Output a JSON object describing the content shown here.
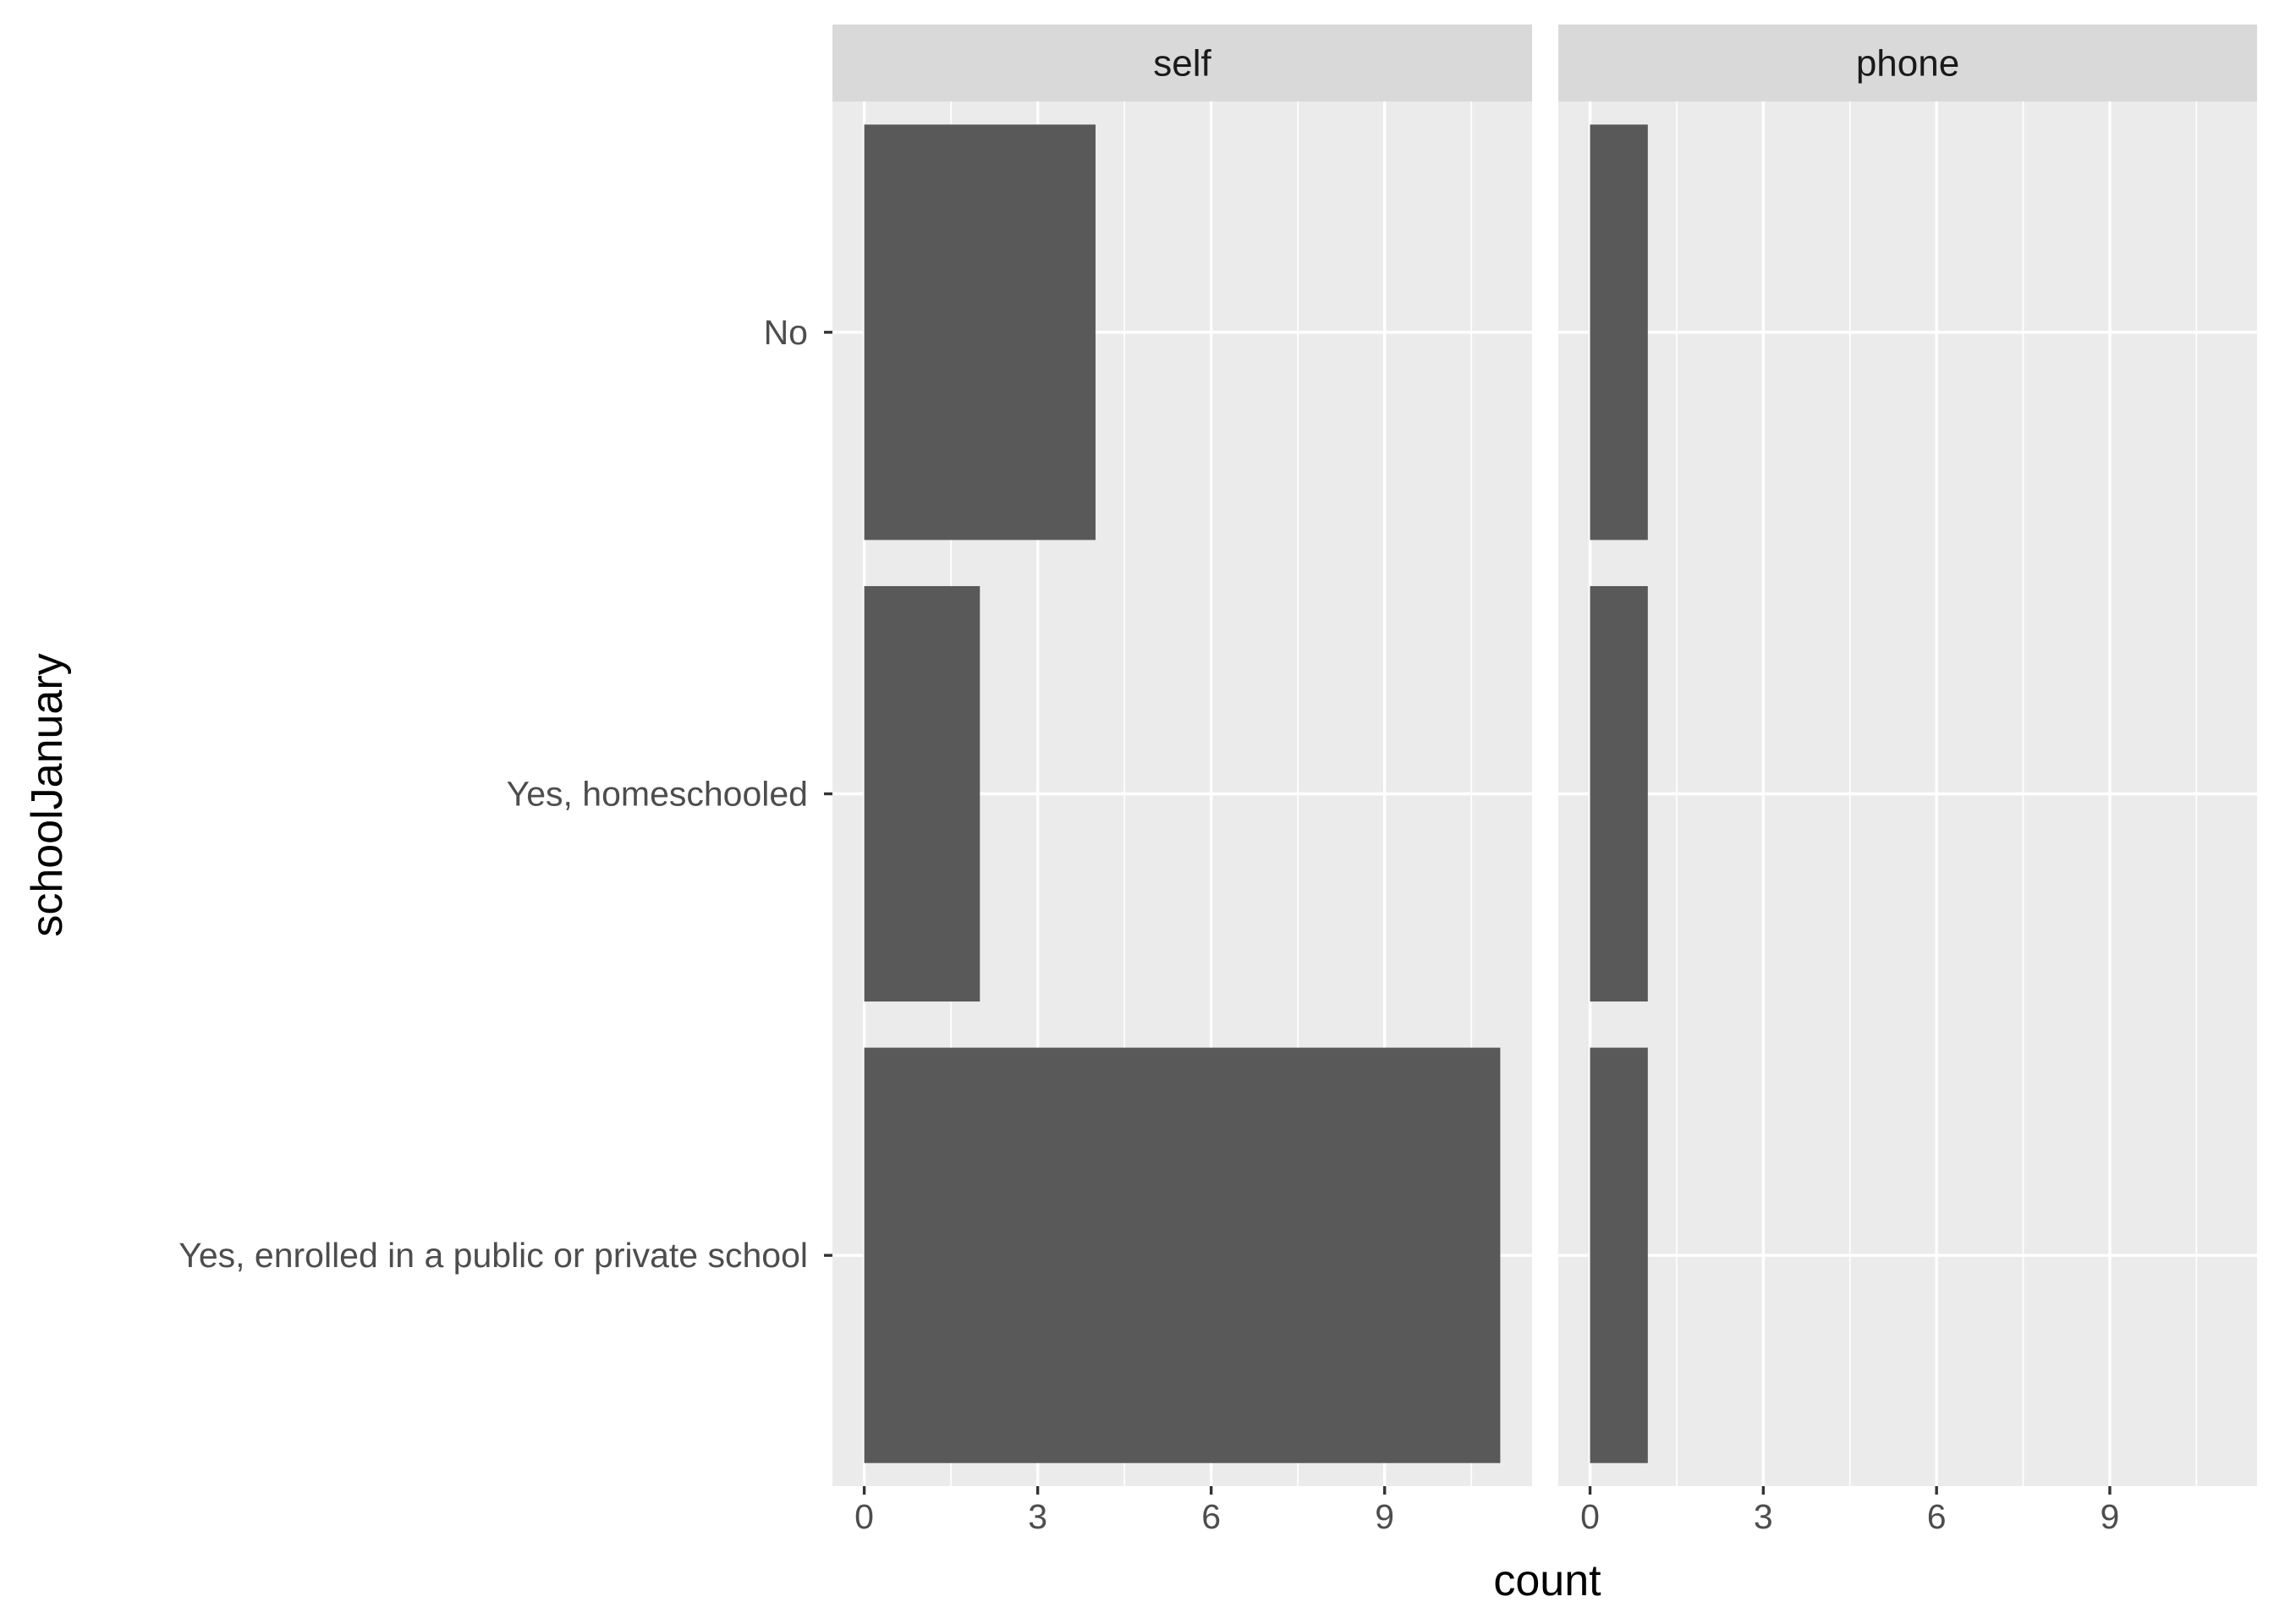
{
  "chart_data": {
    "type": "bar",
    "orientation": "horizontal",
    "categories": [
      "No",
      "Yes, homeschooled",
      "Yes, enrolled in a public or private school"
    ],
    "facets": [
      {
        "name": "self",
        "values": [
          4,
          2,
          11
        ]
      },
      {
        "name": "phone",
        "values": [
          1,
          1,
          1
        ]
      }
    ],
    "xlabel": "count",
    "ylabel": "schoolJanuary",
    "xlim": [
      -0.55,
      11.55
    ],
    "xticks": [
      0,
      3,
      6,
      9
    ],
    "grid": true,
    "bar_color": "#595959",
    "panel_color": "#ebebeb",
    "strip_color": "#d9d9d9"
  }
}
